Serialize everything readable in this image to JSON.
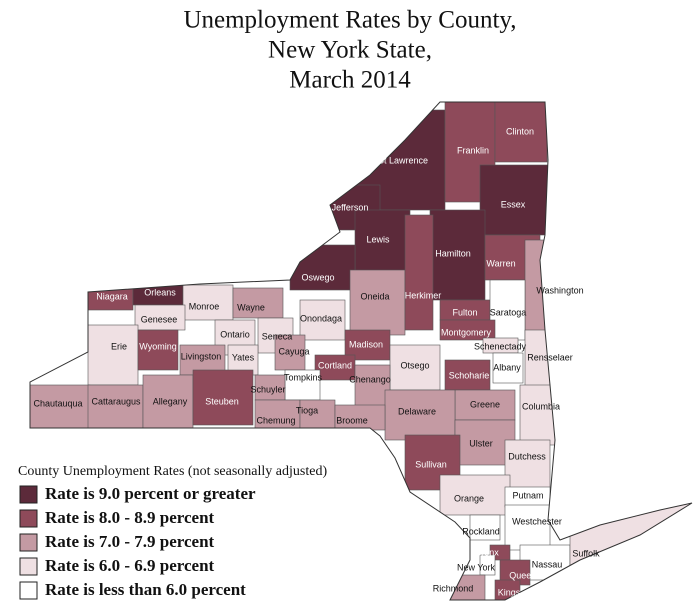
{
  "title_lines": [
    "Unemployment Rates by County,",
    "New York State,",
    "March 2014"
  ],
  "legend": {
    "title": "County Unemployment Rates (not seasonally adjusted)",
    "items": [
      {
        "label": "Rate is 9.0 percent or greater",
        "color": "#5c2a3a"
      },
      {
        "label": "Rate is 8.0 - 8.9 percent",
        "color": "#8e4a5a"
      },
      {
        "label": "Rate is 7.0 - 7.9 percent",
        "color": "#c49aa3"
      },
      {
        "label": "Rate is 6.0 - 6.9 percent",
        "color": "#efe0e3"
      },
      {
        "label": "Rate is less than 6.0 percent",
        "color": "#ffffff"
      }
    ]
  },
  "counties": [
    {
      "name": "St Lawrence",
      "color": "#5c2a3a"
    },
    {
      "name": "Franklin",
      "color": "#8e4a5a"
    },
    {
      "name": "Clinton",
      "color": "#8e4a5a"
    },
    {
      "name": "Jefferson",
      "color": "#5c2a3a"
    },
    {
      "name": "Essex",
      "color": "#5c2a3a"
    },
    {
      "name": "Lewis",
      "color": "#5c2a3a"
    },
    {
      "name": "Hamilton",
      "color": "#5c2a3a"
    },
    {
      "name": "Warren",
      "color": "#8e4a5a"
    },
    {
      "name": "Oswego",
      "color": "#5c2a3a"
    },
    {
      "name": "Oneida",
      "color": "#c49aa3"
    },
    {
      "name": "Herkimer",
      "color": "#8e4a5a"
    },
    {
      "name": "Washington",
      "color": "#c49aa3"
    },
    {
      "name": "Niagara",
      "color": "#8e4a5a"
    },
    {
      "name": "Orleans",
      "color": "#5c2a3a"
    },
    {
      "name": "Monroe",
      "color": "#efe0e3"
    },
    {
      "name": "Wayne",
      "color": "#c49aa3"
    },
    {
      "name": "Fulton",
      "color": "#8e4a5a"
    },
    {
      "name": "Saratoga",
      "color": "#ffffff"
    },
    {
      "name": "Genesee",
      "color": "#efe0e3"
    },
    {
      "name": "Onondaga",
      "color": "#efe0e3"
    },
    {
      "name": "Ontario",
      "color": "#efe0e3"
    },
    {
      "name": "Seneca",
      "color": "#efe0e3"
    },
    {
      "name": "Montgomery",
      "color": "#8e4a5a"
    },
    {
      "name": "Schenectady",
      "color": "#efe0e3"
    },
    {
      "name": "Erie",
      "color": "#efe0e3"
    },
    {
      "name": "Wyoming",
      "color": "#8e4a5a"
    },
    {
      "name": "Cayuga",
      "color": "#c49aa3"
    },
    {
      "name": "Madison",
      "color": "#8e4a5a"
    },
    {
      "name": "Rensselaer",
      "color": "#efe0e3"
    },
    {
      "name": "Livingston",
      "color": "#c49aa3"
    },
    {
      "name": "Yates",
      "color": "#efe0e3"
    },
    {
      "name": "Cortland",
      "color": "#8e4a5a"
    },
    {
      "name": "Otsego",
      "color": "#efe0e3"
    },
    {
      "name": "Albany",
      "color": "#ffffff"
    },
    {
      "name": "Schoharie",
      "color": "#8e4a5a"
    },
    {
      "name": "Tompkins",
      "color": "#ffffff"
    },
    {
      "name": "Chenango",
      "color": "#c49aa3"
    },
    {
      "name": "Schuyler",
      "color": "#c49aa3"
    },
    {
      "name": "Chautauqua",
      "color": "#c49aa3"
    },
    {
      "name": "Cattaraugus",
      "color": "#c49aa3"
    },
    {
      "name": "Allegany",
      "color": "#c49aa3"
    },
    {
      "name": "Steuben",
      "color": "#8e4a5a"
    },
    {
      "name": "Greene",
      "color": "#c49aa3"
    },
    {
      "name": "Columbia",
      "color": "#efe0e3"
    },
    {
      "name": "Delaware",
      "color": "#c49aa3"
    },
    {
      "name": "Chemung",
      "color": "#c49aa3"
    },
    {
      "name": "Tioga",
      "color": "#c49aa3"
    },
    {
      "name": "Broome",
      "color": "#c49aa3"
    },
    {
      "name": "Ulster",
      "color": "#c49aa3"
    },
    {
      "name": "Dutchess",
      "color": "#efe0e3"
    },
    {
      "name": "Sullivan",
      "color": "#8e4a5a"
    },
    {
      "name": "Orange",
      "color": "#efe0e3"
    },
    {
      "name": "Putnam",
      "color": "#ffffff"
    },
    {
      "name": "Rockland",
      "color": "#ffffff"
    },
    {
      "name": "Westchester",
      "color": "#ffffff"
    },
    {
      "name": "Bronx",
      "color": "#8e4a5a"
    },
    {
      "name": "Nassau",
      "color": "#ffffff"
    },
    {
      "name": "Suffolk",
      "color": "#efe0e3"
    },
    {
      "name": "New York",
      "color": "#ffffff"
    },
    {
      "name": "Queens",
      "color": "#8e4a5a"
    },
    {
      "name": "Richmond",
      "color": "#c49aa3"
    },
    {
      "name": "Kings",
      "color": "#8e4a5a"
    }
  ]
}
